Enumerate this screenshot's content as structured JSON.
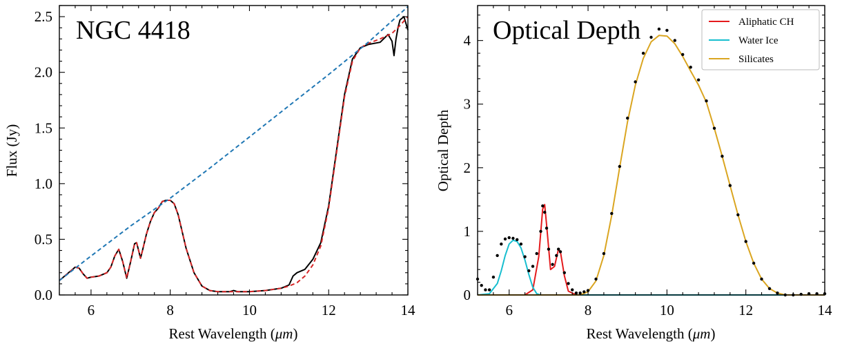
{
  "chart_data": [
    {
      "type": "line",
      "title": "NGC 4418",
      "xlabel": "Rest Wavelength (",
      "xlabel_unit": "μm",
      "xlabel_close": ")",
      "ylabel": "Flux (Jy)",
      "xlim": [
        5.2,
        14.0
      ],
      "ylim": [
        0.0,
        2.6
      ],
      "xticks": [
        6,
        8,
        10,
        12,
        14
      ],
      "xtick_labels": [
        "6",
        "8",
        "10",
        "12",
        "14"
      ],
      "yticks": [
        0.0,
        0.5,
        1.0,
        1.5,
        2.0,
        2.5
      ],
      "ytick_labels": [
        "0.0",
        "0.5",
        "1.0",
        "1.5",
        "2.0",
        "2.5"
      ],
      "grid": false,
      "series": [
        {
          "style": "solid",
          "color": "#000000",
          "x": [
            5.2,
            5.4,
            5.6,
            5.7,
            5.8,
            5.9,
            6.0,
            6.2,
            6.4,
            6.5,
            6.6,
            6.7,
            6.8,
            6.9,
            7.0,
            7.1,
            7.15,
            7.2,
            7.25,
            7.3,
            7.4,
            7.5,
            7.6,
            7.7,
            7.8,
            7.9,
            8.0,
            8.1,
            8.2,
            8.4,
            8.6,
            8.8,
            9.0,
            9.2,
            9.5,
            9.6,
            9.7,
            10.0,
            10.4,
            10.8,
            11.0,
            11.1,
            11.2,
            11.4,
            11.6,
            11.8,
            12.0,
            12.2,
            12.4,
            12.6,
            12.8,
            13.0,
            13.3,
            13.5,
            13.6,
            13.65,
            13.7,
            13.75,
            13.8,
            13.9,
            14.0
          ],
          "y": [
            0.13,
            0.19,
            0.25,
            0.24,
            0.19,
            0.15,
            0.16,
            0.17,
            0.2,
            0.25,
            0.35,
            0.41,
            0.3,
            0.15,
            0.3,
            0.46,
            0.47,
            0.4,
            0.33,
            0.4,
            0.55,
            0.66,
            0.74,
            0.78,
            0.84,
            0.85,
            0.85,
            0.82,
            0.72,
            0.42,
            0.2,
            0.08,
            0.04,
            0.03,
            0.03,
            0.04,
            0.03,
            0.03,
            0.04,
            0.06,
            0.09,
            0.17,
            0.2,
            0.23,
            0.32,
            0.47,
            0.8,
            1.3,
            1.8,
            2.12,
            2.22,
            2.25,
            2.27,
            2.34,
            2.28,
            2.15,
            2.3,
            2.4,
            2.47,
            2.5,
            2.38
          ]
        },
        {
          "style": "dashed",
          "color": "#d62728",
          "x": [
            5.2,
            5.4,
            5.6,
            5.7,
            5.8,
            5.9,
            6.0,
            6.2,
            6.4,
            6.5,
            6.6,
            6.7,
            6.8,
            6.9,
            7.0,
            7.1,
            7.15,
            7.2,
            7.25,
            7.3,
            7.4,
            7.5,
            7.6,
            7.7,
            7.8,
            7.9,
            8.0,
            8.1,
            8.2,
            8.4,
            8.6,
            8.8,
            9.0,
            9.2,
            9.6,
            10.0,
            10.4,
            10.8,
            11.0,
            11.2,
            11.4,
            11.6,
            11.8,
            12.0,
            12.2,
            12.4,
            12.6,
            12.8,
            13.0,
            13.3,
            13.6,
            13.8,
            14.0
          ],
          "y": [
            0.13,
            0.19,
            0.25,
            0.24,
            0.19,
            0.15,
            0.16,
            0.17,
            0.2,
            0.25,
            0.35,
            0.41,
            0.3,
            0.15,
            0.3,
            0.46,
            0.47,
            0.4,
            0.33,
            0.4,
            0.55,
            0.66,
            0.74,
            0.78,
            0.84,
            0.85,
            0.85,
            0.82,
            0.72,
            0.42,
            0.2,
            0.08,
            0.04,
            0.03,
            0.03,
            0.03,
            0.04,
            0.06,
            0.08,
            0.11,
            0.17,
            0.27,
            0.44,
            0.78,
            1.28,
            1.78,
            2.1,
            2.22,
            2.26,
            2.3,
            2.35,
            2.42,
            2.5
          ]
        },
        {
          "style": "dashed",
          "color": "#1f77b4",
          "x": [
            5.2,
            6.0,
            7.0,
            8.0,
            9.0,
            10.0,
            11.0,
            12.0,
            13.0,
            14.0
          ],
          "y": [
            0.13,
            0.35,
            0.62,
            0.87,
            1.14,
            1.42,
            1.7,
            1.98,
            2.27,
            2.59
          ]
        }
      ]
    },
    {
      "type": "line",
      "title": "Optical Depth",
      "xlabel": "Rest Wavelength (",
      "xlabel_unit": "μm",
      "xlabel_close": ")",
      "ylabel": "Optical Depth",
      "xlim": [
        5.2,
        14.0
      ],
      "ylim": [
        0.0,
        4.55
      ],
      "xticks": [
        6,
        8,
        10,
        12,
        14
      ],
      "xtick_labels": [
        "6",
        "8",
        "10",
        "12",
        "14"
      ],
      "yticks": [
        0,
        1,
        2,
        3,
        4
      ],
      "ytick_labels": [
        "0",
        "1",
        "2",
        "3",
        "4"
      ],
      "grid": false,
      "legend_position": "top-right",
      "series": [
        {
          "name": "Aliphatic CH",
          "color": "#e41a1c",
          "x": [
            5.2,
            6.4,
            6.6,
            6.75,
            6.85,
            6.9,
            6.95,
            7.05,
            7.15,
            7.25,
            7.3,
            7.4,
            7.5,
            7.7,
            14.0
          ],
          "y": [
            0.0,
            0.0,
            0.08,
            0.6,
            1.35,
            1.42,
            1.1,
            0.4,
            0.45,
            0.72,
            0.68,
            0.3,
            0.06,
            0.0,
            0.0
          ]
        },
        {
          "name": "Water Ice",
          "color": "#17becf",
          "x": [
            5.2,
            5.5,
            5.7,
            5.8,
            5.9,
            6.0,
            6.1,
            6.2,
            6.3,
            6.4,
            6.5,
            6.6,
            6.7,
            6.8,
            14.0
          ],
          "y": [
            0.0,
            0.02,
            0.18,
            0.38,
            0.62,
            0.8,
            0.86,
            0.84,
            0.74,
            0.55,
            0.32,
            0.12,
            0.02,
            0.0,
            0.0
          ]
        },
        {
          "name": "Silicates",
          "color": "#daa520",
          "x": [
            5.2,
            7.8,
            8.0,
            8.2,
            8.4,
            8.6,
            8.8,
            9.0,
            9.2,
            9.4,
            9.6,
            9.8,
            10.0,
            10.2,
            10.4,
            10.6,
            10.8,
            11.0,
            11.2,
            11.4,
            11.6,
            11.8,
            12.0,
            12.2,
            12.4,
            12.6,
            12.8,
            13.0,
            14.0
          ],
          "y": [
            0.0,
            0.0,
            0.05,
            0.22,
            0.62,
            1.25,
            2.0,
            2.72,
            3.3,
            3.72,
            3.98,
            4.08,
            4.07,
            3.95,
            3.75,
            3.52,
            3.3,
            3.03,
            2.62,
            2.18,
            1.72,
            1.26,
            0.84,
            0.5,
            0.25,
            0.1,
            0.03,
            0.0,
            0.0
          ]
        },
        {
          "style": "points",
          "color": "#000000",
          "x": [
            5.2,
            5.3,
            5.4,
            5.5,
            5.6,
            5.7,
            5.8,
            5.9,
            6.0,
            6.1,
            6.2,
            6.3,
            6.4,
            6.5,
            6.6,
            6.7,
            6.8,
            6.85,
            6.9,
            6.95,
            7.0,
            7.1,
            7.2,
            7.25,
            7.3,
            7.4,
            7.5,
            7.6,
            7.7,
            7.8,
            7.9,
            8.0,
            8.2,
            8.4,
            8.6,
            8.8,
            9.0,
            9.2,
            9.4,
            9.6,
            9.8,
            10.0,
            10.2,
            10.4,
            10.6,
            10.8,
            11.0,
            11.2,
            11.4,
            11.6,
            11.8,
            12.0,
            12.2,
            12.4,
            12.6,
            12.8,
            13.0,
            13.2,
            13.4,
            13.6,
            13.8,
            14.0
          ],
          "y": [
            0.25,
            0.15,
            0.08,
            0.08,
            0.28,
            0.62,
            0.8,
            0.88,
            0.9,
            0.89,
            0.87,
            0.8,
            0.6,
            0.38,
            0.45,
            0.65,
            1.0,
            1.4,
            1.3,
            1.05,
            0.72,
            0.48,
            0.62,
            0.72,
            0.68,
            0.35,
            0.18,
            0.08,
            0.03,
            0.03,
            0.05,
            0.07,
            0.25,
            0.65,
            1.28,
            2.02,
            2.78,
            3.35,
            3.8,
            4.05,
            4.18,
            4.16,
            4.0,
            3.78,
            3.58,
            3.38,
            3.05,
            2.62,
            2.18,
            1.72,
            1.26,
            0.84,
            0.5,
            0.25,
            0.1,
            0.03,
            0.0,
            0.0,
            0.01,
            0.02,
            0.02,
            0.02
          ]
        }
      ]
    }
  ]
}
